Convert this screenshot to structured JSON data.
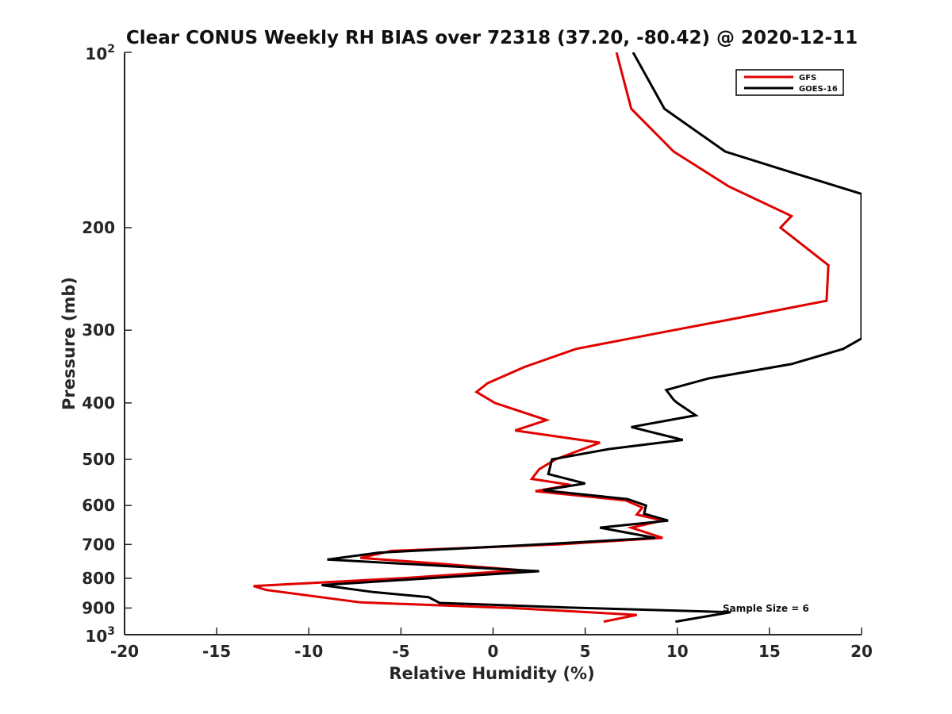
{
  "chart_data": {
    "type": "line",
    "title": "Clear CONUS Weekly RH BIAS over 72318 (37.20, -80.42) @ 2020-12-11",
    "xlabel": "Relative Humidity (%)",
    "ylabel": "Pressure (mb)",
    "xlim": [
      -20,
      20
    ],
    "ylim": [
      1000,
      100
    ],
    "yscale": "log",
    "y_reversed": true,
    "grid": false,
    "legend_position": "top-right",
    "x_ticks": [
      {
        "value": -20,
        "label": "-20"
      },
      {
        "value": -15,
        "label": "-15"
      },
      {
        "value": -10,
        "label": "-10"
      },
      {
        "value": -5,
        "label": "-5"
      },
      {
        "value": 0,
        "label": "0"
      },
      {
        "value": 5,
        "label": "5"
      },
      {
        "value": 10,
        "label": "10"
      },
      {
        "value": 15,
        "label": "15"
      },
      {
        "value": 20,
        "label": "20"
      }
    ],
    "y_ticks": [
      {
        "value": 100,
        "base": "10",
        "exp": "2"
      },
      {
        "value": 200,
        "base": "200",
        "exp": ""
      },
      {
        "value": 300,
        "base": "300",
        "exp": ""
      },
      {
        "value": 400,
        "base": "400",
        "exp": ""
      },
      {
        "value": 500,
        "base": "500",
        "exp": ""
      },
      {
        "value": 600,
        "base": "600",
        "exp": ""
      },
      {
        "value": 700,
        "base": "700",
        "exp": ""
      },
      {
        "value": 800,
        "base": "800",
        "exp": ""
      },
      {
        "value": 900,
        "base": "900",
        "exp": ""
      },
      {
        "value": 1000,
        "base": "10",
        "exp": "3"
      }
    ],
    "series": [
      {
        "name": "GFS",
        "color": "#e00000",
        "points": [
          {
            "x": 6.7,
            "p": 100
          },
          {
            "x": 7.5,
            "p": 125
          },
          {
            "x": 9.8,
            "p": 148
          },
          {
            "x": 12.8,
            "p": 170
          },
          {
            "x": 16.2,
            "p": 191
          },
          {
            "x": 15.6,
            "p": 200
          },
          {
            "x": 18.2,
            "p": 232
          },
          {
            "x": 18.1,
            "p": 267
          },
          {
            "x": 13.0,
            "p": 287
          },
          {
            "x": 9.8,
            "p": 300
          },
          {
            "x": 4.5,
            "p": 323
          },
          {
            "x": 1.7,
            "p": 347
          },
          {
            "x": -0.3,
            "p": 370
          },
          {
            "x": -0.9,
            "p": 383
          },
          {
            "x": 0.1,
            "p": 400
          },
          {
            "x": 2.9,
            "p": 428
          },
          {
            "x": 1.2,
            "p": 446
          },
          {
            "x": 5.8,
            "p": 468
          },
          {
            "x": 3.4,
            "p": 500
          },
          {
            "x": 2.5,
            "p": 520
          },
          {
            "x": 2.1,
            "p": 540
          },
          {
            "x": 4.2,
            "p": 553
          },
          {
            "x": 2.3,
            "p": 567
          },
          {
            "x": 7.2,
            "p": 588
          },
          {
            "x": 8.1,
            "p": 605
          },
          {
            "x": 7.8,
            "p": 622
          },
          {
            "x": 9.2,
            "p": 637
          },
          {
            "x": 7.5,
            "p": 655
          },
          {
            "x": 9.2,
            "p": 682
          },
          {
            "x": 3.5,
            "p": 700
          },
          {
            "x": -5.5,
            "p": 718
          },
          {
            "x": -7.2,
            "p": 738
          },
          {
            "x": -3.0,
            "p": 755
          },
          {
            "x": 1.5,
            "p": 775
          },
          {
            "x": -5.0,
            "p": 800
          },
          {
            "x": -13.0,
            "p": 825
          },
          {
            "x": -12.3,
            "p": 838
          },
          {
            "x": -7.2,
            "p": 880
          },
          {
            "x": 1.0,
            "p": 900
          },
          {
            "x": 7.8,
            "p": 925
          },
          {
            "x": 6.0,
            "p": 950
          }
        ]
      },
      {
        "name": "GOES-16",
        "color": "#000000",
        "points": [
          {
            "x": 7.6,
            "p": 100
          },
          {
            "x": 9.3,
            "p": 125
          },
          {
            "x": 12.6,
            "p": 148
          },
          {
            "x": 16.0,
            "p": 160
          },
          {
            "x": 20.0,
            "p": 175
          },
          {
            "x": 20.0,
            "p": 310
          },
          {
            "x": 19.0,
            "p": 323
          },
          {
            "x": 16.2,
            "p": 343
          },
          {
            "x": 11.7,
            "p": 363
          },
          {
            "x": 9.4,
            "p": 380
          },
          {
            "x": 9.8,
            "p": 395
          },
          {
            "x": 10.0,
            "p": 400
          },
          {
            "x": 11.0,
            "p": 420
          },
          {
            "x": 7.5,
            "p": 440
          },
          {
            "x": 10.3,
            "p": 463
          },
          {
            "x": 6.3,
            "p": 480
          },
          {
            "x": 3.2,
            "p": 500
          },
          {
            "x": 3.0,
            "p": 530
          },
          {
            "x": 5.0,
            "p": 550
          },
          {
            "x": 2.7,
            "p": 565
          },
          {
            "x": 7.3,
            "p": 585
          },
          {
            "x": 8.3,
            "p": 600
          },
          {
            "x": 8.2,
            "p": 620
          },
          {
            "x": 9.5,
            "p": 637
          },
          {
            "x": 5.8,
            "p": 655
          },
          {
            "x": 8.8,
            "p": 682
          },
          {
            "x": 2.5,
            "p": 700
          },
          {
            "x": -6.2,
            "p": 723
          },
          {
            "x": -9.0,
            "p": 743
          },
          {
            "x": 2.5,
            "p": 778
          },
          {
            "x": -9.3,
            "p": 822
          },
          {
            "x": -6.5,
            "p": 845
          },
          {
            "x": -3.5,
            "p": 862
          },
          {
            "x": -2.9,
            "p": 882
          },
          {
            "x": 4.0,
            "p": 898
          },
          {
            "x": 12.9,
            "p": 915
          },
          {
            "x": 9.9,
            "p": 950
          }
        ]
      }
    ],
    "annotation": "Sample Size = 6"
  }
}
